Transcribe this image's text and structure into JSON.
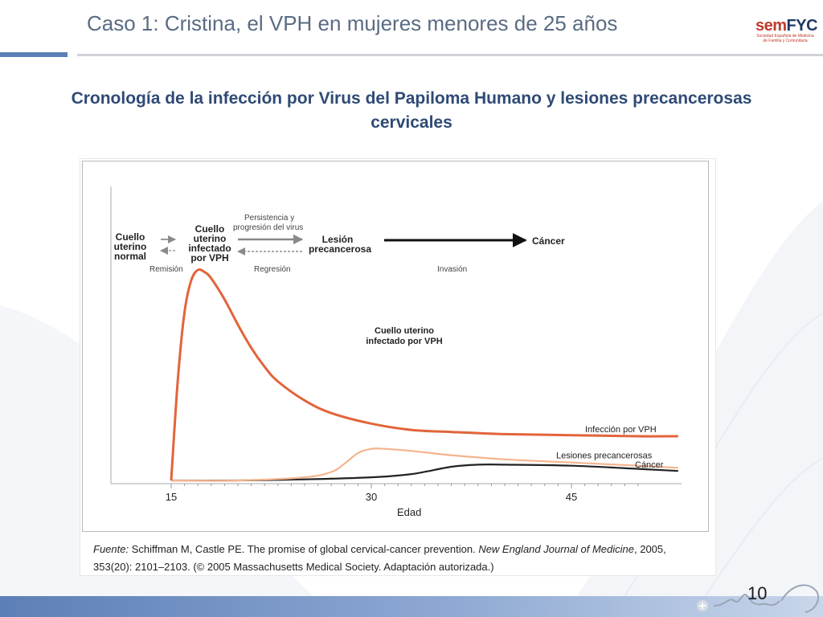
{
  "slide": {
    "title": "Caso 1: Cristina, el VPH en mujeres menores de 25 años",
    "heading": "Cronología de la infección por Virus del Papiloma Humano y lesiones precancerosas cervicales",
    "page_number": "10",
    "logo": {
      "text_red": "sem",
      "text_blue": "FYC",
      "subtitle": "Sociedad Española de Medicina de Familia y Comunitaria"
    },
    "colors": {
      "title": "#5a6b82",
      "heading": "#2f4a76",
      "accent": "#5d7fb7"
    }
  },
  "chart_data": {
    "type": "line",
    "title": "",
    "xlabel": "Edad",
    "ylabel": "",
    "xticks": [
      "15",
      "30",
      "45"
    ],
    "xlim": [
      15,
      53
    ],
    "ylim": [
      0,
      100
    ],
    "grid": false,
    "series": [
      {
        "name": "Infección por VPH",
        "color": "#e2643b",
        "x": [
          15,
          15.5,
          16,
          16.5,
          17,
          17.5,
          18,
          19,
          20,
          21,
          22,
          23,
          25,
          27,
          30,
          33,
          36,
          40,
          45,
          50,
          53
        ],
        "y": [
          0,
          48,
          80,
          95,
          100,
          99,
          96,
          86,
          74,
          63,
          54,
          47,
          38,
          32,
          27,
          24,
          23,
          22,
          21.5,
          21,
          21
        ]
      },
      {
        "name": "Lesiones precancerosas",
        "color": "#f4b48e",
        "x": [
          15,
          20,
          25,
          27,
          28,
          29,
          30,
          31,
          33,
          36,
          40,
          45,
          50,
          53
        ],
        "y": [
          0,
          0,
          1.5,
          4,
          8,
          13,
          15,
          15,
          14,
          12,
          10,
          8.5,
          7,
          6
        ]
      },
      {
        "name": "Cáncer",
        "color": "#222222",
        "x": [
          15,
          20,
          25,
          30,
          33,
          36,
          38,
          40,
          45,
          50,
          53
        ],
        "y": [
          0,
          0,
          0.5,
          1.5,
          3,
          6.5,
          7.5,
          7.5,
          7,
          5.5,
          4.5
        ]
      }
    ],
    "annotations": {
      "stage_normal": [
        "Cuello",
        "uterino",
        "normal"
      ],
      "stage_infected": [
        "Cuello",
        "uterino",
        "infectado",
        "por VPH"
      ],
      "stage_lesion": [
        "Lesión",
        "precancerosa"
      ],
      "stage_cancer": "Cáncer",
      "persistence": [
        "Persistencia y",
        "progresión del virus"
      ],
      "remission": "Remisión",
      "regression": "Regresión",
      "invasion": "Invasión",
      "curve_label": [
        "Cuello uterino",
        "infectado por VPH"
      ]
    },
    "source": {
      "prefix": "Fuente:",
      "authors": " Schiffman M, Castle PE. The promise of global cervical-cancer prevention. ",
      "journal": "New England Journal of Medicine",
      "rest": ", 2005, 353(20): 2101–2103. (© 2005 Massachusetts Medical Society. Adaptación autorizada.)"
    }
  }
}
